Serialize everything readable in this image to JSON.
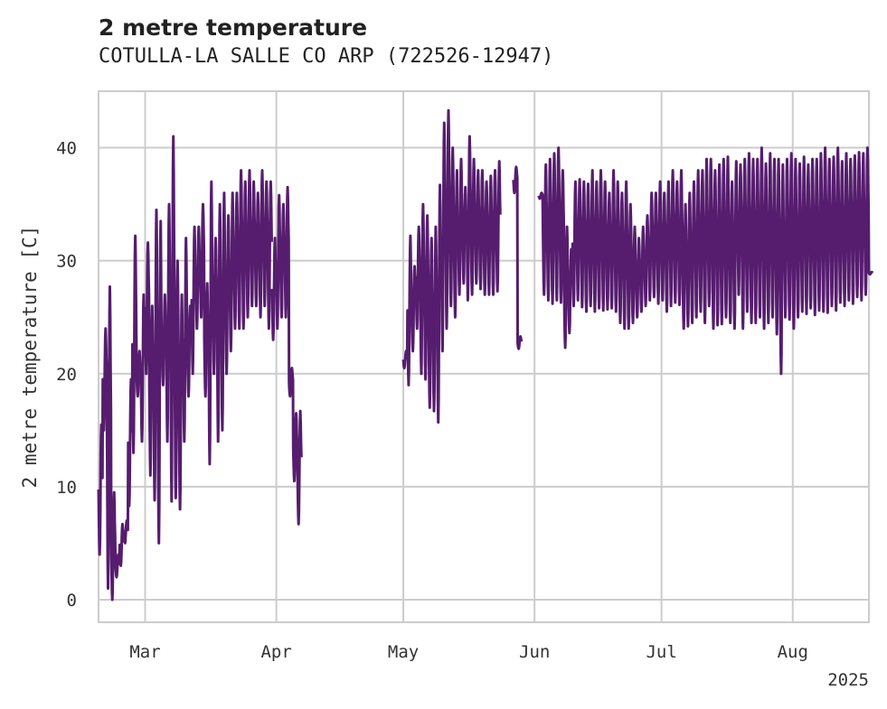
{
  "chart_data": {
    "type": "line",
    "title": "2 metre temperature",
    "subtitle": "COTULLA-LA SALLE CO ARP (722526-12947)",
    "xlabel": "",
    "ylabel": "2 metre temperature [C]",
    "x_ticks": [
      {
        "date": "2025-03-01",
        "label": "Mar"
      },
      {
        "date": "2025-04-01",
        "label": "Apr"
      },
      {
        "date": "2025-05-01",
        "label": "May"
      },
      {
        "date": "2025-06-01",
        "label": "Jun"
      },
      {
        "date": "2025-07-01",
        "label": "Jul"
      },
      {
        "date": "2025-08-01",
        "label": "Aug"
      }
    ],
    "x_offset_label": "2025",
    "xlim": [
      "2025-02-18",
      "2025-08-19"
    ],
    "ylim": [
      -2,
      45
    ],
    "y_ticks": [
      0,
      10,
      20,
      30,
      40
    ],
    "grid": true,
    "series": [
      {
        "color": "#561d6e",
        "segments": [
          {
            "x": [
              "2025-02-18",
              "2025-02-19",
              "2025-02-20",
              "2025-02-21",
              "2025-02-22",
              "2025-02-23",
              "2025-02-24",
              "2025-02-25",
              "2025-02-26",
              "2025-02-27",
              "2025-02-28",
              "2025-03-01",
              "2025-03-02",
              "2025-03-03",
              "2025-03-04",
              "2025-03-05",
              "2025-03-06",
              "2025-03-07",
              "2025-03-08",
              "2025-03-09",
              "2025-03-10",
              "2025-03-11",
              "2025-03-12",
              "2025-03-13",
              "2025-03-14",
              "2025-03-15",
              "2025-03-16",
              "2025-03-17",
              "2025-03-18",
              "2025-03-19",
              "2025-03-20",
              "2025-03-21",
              "2025-03-22",
              "2025-03-23",
              "2025-03-24",
              "2025-03-25",
              "2025-03-26",
              "2025-03-27",
              "2025-03-28",
              "2025-03-29",
              "2025-03-30"
            ],
            "max": [
              15.5,
              24,
              27.7,
              9.5,
              4,
              6.7,
              7,
              19.5,
              32.2,
              22,
              27,
              31.6,
              26,
              34.5,
              33.5,
              27,
              35,
              41,
              30,
              27,
              32,
              26,
              33,
              33,
              35,
              28,
              37,
              32,
              35,
              36,
              34,
              36,
              36,
              38,
              37,
              38,
              37,
              36,
              38,
              37,
              37
            ],
            "min": [
              4,
              15,
              1,
              0,
              2,
              3,
              5,
              8.3,
              13,
              18,
              14,
              20,
              11,
              8.8,
              5,
              19,
              14,
              8.7,
              9,
              8,
              14,
              18,
              20,
              24,
              25,
              18,
              12,
              20,
              14,
              15,
              20,
              22,
              24,
              24,
              24,
              25,
              26,
              26,
              25,
              26,
              24
            ]
          },
          {
            "x": [
              "2025-03-31",
              "2025-04-01",
              "2025-04-02",
              "2025-04-03",
              "2025-04-04",
              "2025-04-05",
              "2025-04-06"
            ],
            "max": [
              32,
              35.8,
              35,
              36.5,
              20.5,
              16.5,
              16.7
            ],
            "min": [
              23,
              24,
              25,
              25,
              18,
              10.5,
              6.7
            ]
          },
          {
            "x": [
              "2025-05-01",
              "2025-05-02",
              "2025-05-03",
              "2025-05-04",
              "2025-05-05",
              "2025-05-06",
              "2025-05-07",
              "2025-05-08",
              "2025-05-09",
              "2025-05-10",
              "2025-05-11",
              "2025-05-12",
              "2025-05-13",
              "2025-05-14",
              "2025-05-15",
              "2025-05-16",
              "2025-05-17",
              "2025-05-18",
              "2025-05-19",
              "2025-05-20",
              "2025-05-21",
              "2025-05-22",
              "2025-05-23"
            ],
            "max": [
              22,
              32.2,
              29.5,
              33,
              35,
              34,
              32,
              33,
              36.7,
              42.2,
              43.3,
              40,
              38,
              39,
              36.5,
              41,
              39,
              38,
              38,
              37,
              37.5,
              38,
              38.8
            ],
            "min": [
              20.5,
              19,
              22,
              24,
              20,
              19.5,
              17,
              16.7,
              15.7,
              22,
              24,
              26,
              25,
              27,
              28,
              26.5,
              27,
              28,
              27.5,
              27,
              27,
              27,
              27.3
            ]
          },
          {
            "x": [
              "2025-05-27",
              "2025-05-28"
            ],
            "max": [
              38.3,
              23.3
            ],
            "min": [
              36,
              22.2
            ]
          },
          {
            "x": [
              "2025-06-02",
              "2025-06-03",
              "2025-06-04",
              "2025-06-05",
              "2025-06-06",
              "2025-06-07",
              "2025-06-08",
              "2025-06-09",
              "2025-06-10",
              "2025-06-11",
              "2025-06-12",
              "2025-06-13",
              "2025-06-14",
              "2025-06-15",
              "2025-06-16",
              "2025-06-17",
              "2025-06-18",
              "2025-06-19",
              "2025-06-20",
              "2025-06-21",
              "2025-06-22",
              "2025-06-23",
              "2025-06-24",
              "2025-06-25",
              "2025-06-26",
              "2025-06-27",
              "2025-06-28",
              "2025-06-29",
              "2025-06-30",
              "2025-07-01",
              "2025-07-02",
              "2025-07-03",
              "2025-07-04",
              "2025-07-05",
              "2025-07-06",
              "2025-07-07",
              "2025-07-08",
              "2025-07-09",
              "2025-07-10",
              "2025-07-11",
              "2025-07-12",
              "2025-07-13",
              "2025-07-14",
              "2025-07-15",
              "2025-07-16",
              "2025-07-17",
              "2025-07-18",
              "2025-07-19",
              "2025-07-20",
              "2025-07-21",
              "2025-07-22",
              "2025-07-23",
              "2025-07-24",
              "2025-07-25",
              "2025-07-26",
              "2025-07-27",
              "2025-07-28",
              "2025-07-29",
              "2025-07-30",
              "2025-07-31",
              "2025-08-01",
              "2025-08-02",
              "2025-08-03",
              "2025-08-04",
              "2025-08-05",
              "2025-08-06",
              "2025-08-07",
              "2025-08-08",
              "2025-08-09",
              "2025-08-10",
              "2025-08-11",
              "2025-08-12",
              "2025-08-13",
              "2025-08-14",
              "2025-08-15",
              "2025-08-16",
              "2025-08-17",
              "2025-08-18",
              "2025-08-19"
            ],
            "max": [
              36,
              38.5,
              39,
              39.5,
              40,
              38,
              33,
              31,
              37,
              37.2,
              37,
              36.8,
              38,
              37,
              38,
              37,
              36,
              38,
              37,
              36,
              37,
              35,
              33,
              32,
              33,
              34,
              36,
              36,
              37,
              36,
              37,
              38,
              37,
              38,
              35,
              36,
              37,
              38,
              38,
              39,
              39,
              38,
              38.5,
              39,
              39.2,
              37,
              38.8,
              38.5,
              39,
              39.5,
              39,
              39,
              40,
              38.6,
              39.5,
              39,
              39,
              38.5,
              39,
              39.5,
              39,
              38.6,
              39.2,
              38.5,
              39,
              39,
              39.5,
              40,
              39,
              39.2,
              40,
              38.8,
              39.5,
              39,
              39.3,
              39.6,
              39.5,
              40,
              29
            ],
            "min": [
              35.5,
              27,
              26.5,
              26.2,
              26.5,
              26.3,
              22.3,
              23.6,
              26,
              26.5,
              25.9,
              25.5,
              26,
              25.5,
              25.8,
              25.6,
              25.7,
              25.8,
              25.5,
              24.5,
              24,
              24,
              24.5,
              25,
              25.5,
              26,
              26.5,
              26.8,
              26.2,
              26.5,
              25.5,
              26,
              26.3,
              26.1,
              24,
              24.2,
              24.5,
              25,
              25.5,
              24.5,
              26,
              24,
              24.3,
              24.4,
              25,
              24.5,
              24,
              27,
              24,
              25.5,
              24.5,
              24.5,
              25,
              24,
              24.5,
              25,
              23.5,
              20,
              25,
              24.8,
              24,
              25,
              25.5,
              25.3,
              25.8,
              25.2,
              25.6,
              25.5,
              25.4,
              26,
              25.6,
              26.3,
              26,
              26.5,
              26.2,
              26.8,
              26.5,
              27,
              28.8
            ]
          }
        ]
      }
    ]
  }
}
